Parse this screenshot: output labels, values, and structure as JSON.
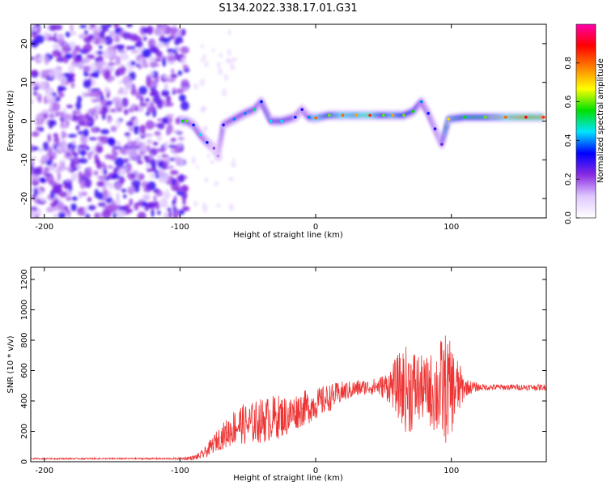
{
  "title": "S134.2022.338.17.01.G31",
  "chart_data": [
    {
      "type": "heatmap",
      "xlabel": "Height of straight line (km)",
      "ylabel": "Frequency (Hz)",
      "xlim": [
        -210,
        170
      ],
      "ylim": [
        -25,
        25
      ],
      "xticks": [
        -200,
        -100,
        0,
        100
      ],
      "yticks": [
        -20,
        -10,
        0,
        10,
        20
      ],
      "colorbar": {
        "label": "Normalized spectral amplitude",
        "range": [
          0,
          1
        ],
        "ticks": [
          0.0,
          0.2,
          0.4,
          0.6,
          0.8
        ],
        "colors": [
          "#ffffff",
          "#e0c8ff",
          "#8a2be2",
          "#0000ff",
          "#00e5ff",
          "#00e000",
          "#ffff00",
          "#ff8000",
          "#ff0000",
          "#ff00aa"
        ]
      },
      "ridge": [
        {
          "x": -98,
          "f": 0.0,
          "a": 0.55
        },
        {
          "x": -95,
          "f": 0.0,
          "a": 0.6
        },
        {
          "x": -90,
          "f": -1.0,
          "a": 0.35
        },
        {
          "x": -85,
          "f": -3.5,
          "a": 0.45
        },
        {
          "x": -80,
          "f": -5.5,
          "a": 0.35
        },
        {
          "x": -75,
          "f": -7.0,
          "a": 0.2
        },
        {
          "x": -72,
          "f": -9.0,
          "a": 0.15
        },
        {
          "x": -68,
          "f": -1.0,
          "a": 0.3
        },
        {
          "x": -60,
          "f": 0.5,
          "a": 0.4
        },
        {
          "x": -52,
          "f": 2.0,
          "a": 0.4
        },
        {
          "x": -45,
          "f": 3.0,
          "a": 0.5
        },
        {
          "x": -40,
          "f": 5.0,
          "a": 0.35
        },
        {
          "x": -33,
          "f": 0.0,
          "a": 0.45
        },
        {
          "x": -25,
          "f": 0.0,
          "a": 0.45
        },
        {
          "x": -15,
          "f": 1.0,
          "a": 0.35
        },
        {
          "x": -10,
          "f": 3.0,
          "a": 0.3
        },
        {
          "x": -5,
          "f": 1.0,
          "a": 0.4
        },
        {
          "x": 0,
          "f": 0.8,
          "a": 0.8
        },
        {
          "x": 10,
          "f": 1.5,
          "a": 0.6
        },
        {
          "x": 20,
          "f": 1.5,
          "a": 0.8
        },
        {
          "x": 30,
          "f": 1.5,
          "a": 0.75
        },
        {
          "x": 40,
          "f": 1.5,
          "a": 0.85
        },
        {
          "x": 50,
          "f": 1.5,
          "a": 0.6
        },
        {
          "x": 57,
          "f": 1.5,
          "a": 0.75
        },
        {
          "x": 65,
          "f": 1.5,
          "a": 0.6
        },
        {
          "x": 72,
          "f": 2.5,
          "a": 0.55
        },
        {
          "x": 78,
          "f": 5.0,
          "a": 0.4
        },
        {
          "x": 83,
          "f": 2.0,
          "a": 0.35
        },
        {
          "x": 88,
          "f": -2.0,
          "a": 0.3
        },
        {
          "x": 93,
          "f": -6.0,
          "a": 0.25
        },
        {
          "x": 98,
          "f": 0.5,
          "a": 0.7
        },
        {
          "x": 110,
          "f": 1.0,
          "a": 0.55
        },
        {
          "x": 125,
          "f": 1.0,
          "a": 0.6
        },
        {
          "x": 140,
          "f": 1.0,
          "a": 0.8
        },
        {
          "x": 155,
          "f": 1.0,
          "a": 0.9
        },
        {
          "x": 168,
          "f": 1.0,
          "a": 0.85
        }
      ]
    },
    {
      "type": "line",
      "xlabel": "Height of straight line (km)",
      "ylabel": "SNR (10 * v/v)",
      "xlim": [
        -210,
        170
      ],
      "ylim": [
        0,
        1280
      ],
      "xticks": [
        -200,
        -100,
        0,
        100
      ],
      "yticks": [
        0,
        200,
        400,
        600,
        800,
        1000,
        1200
      ],
      "series": [
        {
          "color": "#ee3333",
          "x": [
            -210,
            -190,
            -170,
            -150,
            -130,
            -110,
            -100,
            -90,
            -85,
            -80,
            -75,
            -70,
            -65,
            -60,
            -55,
            -50,
            -45,
            -40,
            -35,
            -30,
            -25,
            -20,
            -15,
            -10,
            -5,
            0,
            5,
            10,
            15,
            20,
            25,
            30,
            35,
            40,
            45,
            50,
            55,
            60,
            65,
            70,
            75,
            80,
            85,
            90,
            95,
            100,
            105,
            110,
            120,
            130,
            140,
            150,
            160,
            170
          ],
          "y": [
            20,
            20,
            20,
            20,
            20,
            20,
            20,
            25,
            40,
            70,
            120,
            160,
            190,
            230,
            250,
            240,
            260,
            270,
            280,
            290,
            300,
            300,
            330,
            350,
            360,
            380,
            400,
            420,
            440,
            460,
            470,
            480,
            490,
            490,
            495,
            495,
            500,
            500,
            480,
            480,
            480,
            480,
            470,
            460,
            480,
            480,
            480,
            490,
            490,
            490,
            490,
            490,
            490,
            490
          ],
          "noise": [
            5,
            5,
            5,
            5,
            5,
            5,
            8,
            15,
            25,
            40,
            60,
            80,
            100,
            120,
            130,
            140,
            140,
            150,
            150,
            150,
            140,
            130,
            120,
            120,
            110,
            100,
            100,
            90,
            80,
            70,
            60,
            60,
            50,
            50,
            60,
            80,
            120,
            200,
            280,
            300,
            250,
            200,
            250,
            320,
            380,
            300,
            200,
            60,
            25,
            20,
            20,
            20,
            20,
            20
          ]
        }
      ]
    }
  ]
}
